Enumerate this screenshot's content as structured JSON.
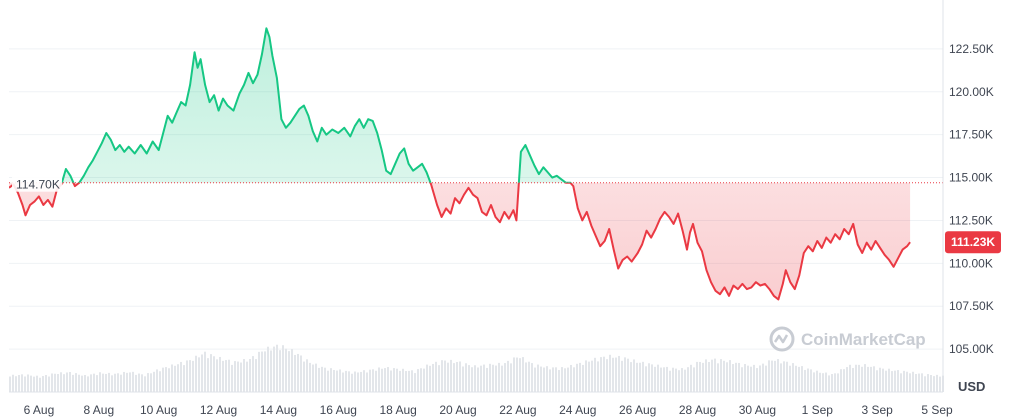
{
  "chart_data": {
    "type": "area",
    "currency_label": "USD",
    "baseline": 114.7,
    "baseline_label": "114.70K",
    "current_price": 111.23,
    "current_price_label": "111.23K",
    "ylim": [
      102.5,
      125.0
    ],
    "y_ticks": [
      105.0,
      107.5,
      110.0,
      112.5,
      115.0,
      117.5,
      120.0,
      122.5
    ],
    "y_tick_labels": [
      "105.00K",
      "107.50K",
      "110.00K",
      "112.50K",
      "115.00K",
      "117.50K",
      "120.00K",
      "122.50K"
    ],
    "x_ticks": [
      "6 Aug",
      "8 Aug",
      "10 Aug",
      "12 Aug",
      "14 Aug",
      "16 Aug",
      "18 Aug",
      "20 Aug",
      "22 Aug",
      "24 Aug",
      "26 Aug",
      "28 Aug",
      "30 Aug",
      "1 Sep",
      "3 Sep",
      "5 Sep"
    ],
    "x_tick_days": [
      1,
      3,
      5,
      7,
      9,
      11,
      13,
      15,
      17,
      19,
      21,
      23,
      25,
      27,
      29,
      31
    ],
    "x_range_days": [
      0.0,
      31.2
    ],
    "x_day_zero": "5 Aug",
    "series": [
      {
        "values_unit": "K USD",
        "points": [
          [
            0.0,
            114.4
          ],
          [
            0.15,
            114.6
          ],
          [
            0.3,
            114.1
          ],
          [
            0.45,
            113.4
          ],
          [
            0.55,
            112.8
          ],
          [
            0.7,
            113.4
          ],
          [
            0.85,
            113.6
          ],
          [
            1.0,
            113.9
          ],
          [
            1.15,
            113.4
          ],
          [
            1.3,
            113.7
          ],
          [
            1.45,
            113.3
          ],
          [
            1.6,
            114.3
          ],
          [
            1.75,
            114.6
          ],
          [
            1.9,
            115.5
          ],
          [
            2.05,
            115.1
          ],
          [
            2.2,
            114.5
          ],
          [
            2.35,
            114.7
          ],
          [
            2.5,
            115.1
          ],
          [
            2.65,
            115.6
          ],
          [
            2.8,
            116.0
          ],
          [
            2.95,
            116.5
          ],
          [
            3.1,
            117.0
          ],
          [
            3.25,
            117.6
          ],
          [
            3.4,
            117.2
          ],
          [
            3.55,
            116.6
          ],
          [
            3.7,
            116.9
          ],
          [
            3.85,
            116.5
          ],
          [
            4.0,
            116.8
          ],
          [
            4.2,
            116.4
          ],
          [
            4.4,
            116.9
          ],
          [
            4.6,
            116.4
          ],
          [
            4.8,
            117.1
          ],
          [
            5.0,
            116.6
          ],
          [
            5.15,
            117.6
          ],
          [
            5.3,
            118.6
          ],
          [
            5.45,
            118.2
          ],
          [
            5.6,
            118.8
          ],
          [
            5.75,
            119.4
          ],
          [
            5.9,
            119.2
          ],
          [
            6.05,
            120.4
          ],
          [
            6.2,
            122.3
          ],
          [
            6.3,
            121.4
          ],
          [
            6.4,
            121.9
          ],
          [
            6.55,
            120.4
          ],
          [
            6.7,
            119.4
          ],
          [
            6.85,
            119.8
          ],
          [
            7.0,
            118.9
          ],
          [
            7.15,
            119.6
          ],
          [
            7.3,
            119.2
          ],
          [
            7.5,
            118.9
          ],
          [
            7.7,
            119.9
          ],
          [
            7.85,
            120.4
          ],
          [
            8.0,
            121.1
          ],
          [
            8.15,
            120.5
          ],
          [
            8.3,
            121.0
          ],
          [
            8.45,
            122.2
          ],
          [
            8.6,
            123.7
          ],
          [
            8.7,
            123.2
          ],
          [
            8.8,
            122.1
          ],
          [
            8.95,
            120.8
          ],
          [
            9.1,
            118.4
          ],
          [
            9.25,
            117.9
          ],
          [
            9.4,
            118.2
          ],
          [
            9.55,
            118.6
          ],
          [
            9.7,
            119.0
          ],
          [
            9.85,
            119.2
          ],
          [
            10.0,
            118.6
          ],
          [
            10.15,
            117.7
          ],
          [
            10.3,
            117.1
          ],
          [
            10.45,
            117.9
          ],
          [
            10.6,
            117.5
          ],
          [
            10.8,
            117.8
          ],
          [
            11.0,
            117.6
          ],
          [
            11.2,
            117.9
          ],
          [
            11.4,
            117.4
          ],
          [
            11.55,
            118.0
          ],
          [
            11.7,
            118.4
          ],
          [
            11.85,
            117.9
          ],
          [
            12.0,
            118.4
          ],
          [
            12.15,
            118.3
          ],
          [
            12.3,
            117.6
          ],
          [
            12.45,
            116.6
          ],
          [
            12.6,
            115.4
          ],
          [
            12.75,
            115.2
          ],
          [
            12.9,
            115.8
          ],
          [
            13.05,
            116.4
          ],
          [
            13.2,
            116.7
          ],
          [
            13.35,
            115.8
          ],
          [
            13.5,
            115.4
          ],
          [
            13.65,
            115.6
          ],
          [
            13.8,
            115.8
          ],
          [
            13.95,
            115.3
          ],
          [
            14.1,
            114.6
          ],
          [
            14.3,
            113.4
          ],
          [
            14.45,
            112.7
          ],
          [
            14.6,
            113.2
          ],
          [
            14.75,
            112.9
          ],
          [
            14.9,
            113.8
          ],
          [
            15.05,
            113.5
          ],
          [
            15.2,
            114.0
          ],
          [
            15.35,
            114.4
          ],
          [
            15.5,
            114.0
          ],
          [
            15.65,
            113.8
          ],
          [
            15.8,
            113.0
          ],
          [
            15.95,
            112.8
          ],
          [
            16.1,
            113.4
          ],
          [
            16.25,
            112.7
          ],
          [
            16.4,
            112.4
          ],
          [
            16.55,
            113.0
          ],
          [
            16.7,
            112.6
          ],
          [
            16.85,
            113.1
          ],
          [
            16.95,
            112.5
          ],
          [
            17.1,
            116.5
          ],
          [
            17.25,
            116.9
          ],
          [
            17.4,
            116.3
          ],
          [
            17.55,
            115.7
          ],
          [
            17.7,
            115.2
          ],
          [
            17.85,
            115.6
          ],
          [
            18.0,
            115.3
          ],
          [
            18.15,
            115.0
          ],
          [
            18.3,
            115.1
          ],
          [
            18.45,
            114.9
          ],
          [
            18.6,
            114.7
          ],
          [
            18.75,
            114.7
          ],
          [
            18.85,
            114.5
          ],
          [
            19.0,
            113.2
          ],
          [
            19.15,
            112.5
          ],
          [
            19.3,
            113.0
          ],
          [
            19.45,
            112.2
          ],
          [
            19.6,
            111.6
          ],
          [
            19.75,
            111.0
          ],
          [
            19.9,
            111.3
          ],
          [
            20.05,
            112.0
          ],
          [
            20.2,
            110.8
          ],
          [
            20.35,
            109.7
          ],
          [
            20.5,
            110.2
          ],
          [
            20.65,
            110.4
          ],
          [
            20.8,
            110.1
          ],
          [
            21.0,
            110.6
          ],
          [
            21.15,
            111.1
          ],
          [
            21.3,
            111.9
          ],
          [
            21.45,
            111.5
          ],
          [
            21.6,
            112.0
          ],
          [
            21.75,
            112.6
          ],
          [
            21.9,
            113.0
          ],
          [
            22.05,
            112.7
          ],
          [
            22.2,
            112.3
          ],
          [
            22.35,
            112.9
          ],
          [
            22.5,
            111.9
          ],
          [
            22.65,
            110.8
          ],
          [
            22.75,
            111.8
          ],
          [
            22.85,
            112.3
          ],
          [
            23.0,
            111.2
          ],
          [
            23.15,
            110.7
          ],
          [
            23.3,
            109.6
          ],
          [
            23.45,
            108.9
          ],
          [
            23.6,
            108.4
          ],
          [
            23.75,
            108.2
          ],
          [
            23.9,
            108.6
          ],
          [
            24.05,
            108.1
          ],
          [
            24.2,
            108.7
          ],
          [
            24.35,
            108.5
          ],
          [
            24.5,
            108.8
          ],
          [
            24.65,
            108.5
          ],
          [
            24.8,
            108.6
          ],
          [
            24.95,
            108.9
          ],
          [
            25.1,
            108.7
          ],
          [
            25.25,
            108.8
          ],
          [
            25.4,
            108.5
          ],
          [
            25.55,
            108.1
          ],
          [
            25.7,
            107.9
          ],
          [
            25.85,
            108.8
          ],
          [
            25.95,
            109.6
          ],
          [
            26.1,
            108.9
          ],
          [
            26.25,
            108.5
          ],
          [
            26.4,
            109.3
          ],
          [
            26.55,
            110.6
          ],
          [
            26.7,
            111.0
          ],
          [
            26.85,
            110.7
          ],
          [
            27.0,
            111.3
          ],
          [
            27.15,
            110.9
          ],
          [
            27.3,
            111.5
          ],
          [
            27.45,
            111.2
          ],
          [
            27.6,
            111.7
          ],
          [
            27.75,
            111.4
          ],
          [
            27.9,
            112.0
          ],
          [
            28.05,
            111.7
          ],
          [
            28.2,
            112.3
          ],
          [
            28.35,
            111.1
          ],
          [
            28.5,
            110.6
          ],
          [
            28.65,
            111.2
          ],
          [
            28.8,
            110.8
          ],
          [
            28.95,
            111.3
          ],
          [
            29.1,
            110.9
          ],
          [
            29.25,
            110.5
          ],
          [
            29.4,
            110.2
          ],
          [
            29.55,
            109.8
          ],
          [
            29.7,
            110.3
          ],
          [
            29.85,
            110.8
          ],
          [
            30.0,
            111.0
          ],
          [
            30.1,
            111.23
          ]
        ]
      }
    ],
    "volume": [
      [
        0.0,
        0.3
      ],
      [
        0.5,
        0.32
      ],
      [
        1.0,
        0.28
      ],
      [
        1.5,
        0.34
      ],
      [
        2.0,
        0.36
      ],
      [
        2.5,
        0.3
      ],
      [
        3.0,
        0.35
      ],
      [
        3.5,
        0.33
      ],
      [
        4.0,
        0.37
      ],
      [
        4.5,
        0.31
      ],
      [
        5.0,
        0.42
      ],
      [
        5.5,
        0.5
      ],
      [
        6.0,
        0.58
      ],
      [
        6.5,
        0.72
      ],
      [
        7.0,
        0.62
      ],
      [
        7.5,
        0.55
      ],
      [
        8.0,
        0.6
      ],
      [
        8.5,
        0.78
      ],
      [
        9.0,
        0.86
      ],
      [
        9.5,
        0.74
      ],
      [
        10.0,
        0.55
      ],
      [
        10.5,
        0.44
      ],
      [
        11.0,
        0.4
      ],
      [
        11.5,
        0.36
      ],
      [
        12.0,
        0.4
      ],
      [
        12.5,
        0.45
      ],
      [
        13.0,
        0.42
      ],
      [
        13.5,
        0.38
      ],
      [
        14.0,
        0.5
      ],
      [
        14.5,
        0.58
      ],
      [
        15.0,
        0.55
      ],
      [
        15.5,
        0.47
      ],
      [
        16.0,
        0.5
      ],
      [
        16.5,
        0.52
      ],
      [
        17.0,
        0.66
      ],
      [
        17.5,
        0.5
      ],
      [
        18.0,
        0.45
      ],
      [
        18.5,
        0.44
      ],
      [
        19.0,
        0.52
      ],
      [
        19.5,
        0.6
      ],
      [
        20.0,
        0.66
      ],
      [
        20.5,
        0.63
      ],
      [
        21.0,
        0.55
      ],
      [
        21.5,
        0.5
      ],
      [
        22.0,
        0.44
      ],
      [
        22.5,
        0.42
      ],
      [
        23.0,
        0.55
      ],
      [
        23.5,
        0.6
      ],
      [
        24.0,
        0.57
      ],
      [
        24.5,
        0.5
      ],
      [
        25.0,
        0.47
      ],
      [
        25.5,
        0.6
      ],
      [
        26.0,
        0.54
      ],
      [
        26.5,
        0.45
      ],
      [
        27.0,
        0.37
      ],
      [
        27.5,
        0.32
      ],
      [
        28.0,
        0.48
      ],
      [
        28.5,
        0.5
      ],
      [
        29.0,
        0.44
      ],
      [
        29.5,
        0.4
      ],
      [
        30.0,
        0.37
      ],
      [
        30.5,
        0.33
      ],
      [
        31.0,
        0.3
      ]
    ]
  },
  "watermark": {
    "text": "CoinMarketCap"
  },
  "colors": {
    "up_line": "#16c784",
    "down_line": "#ea3943",
    "up_fill": "#16c784",
    "down_fill": "#ea3943",
    "grid": "#eff2f5",
    "volume": "#e3e6ea",
    "badge_bg": "#ea3943"
  }
}
